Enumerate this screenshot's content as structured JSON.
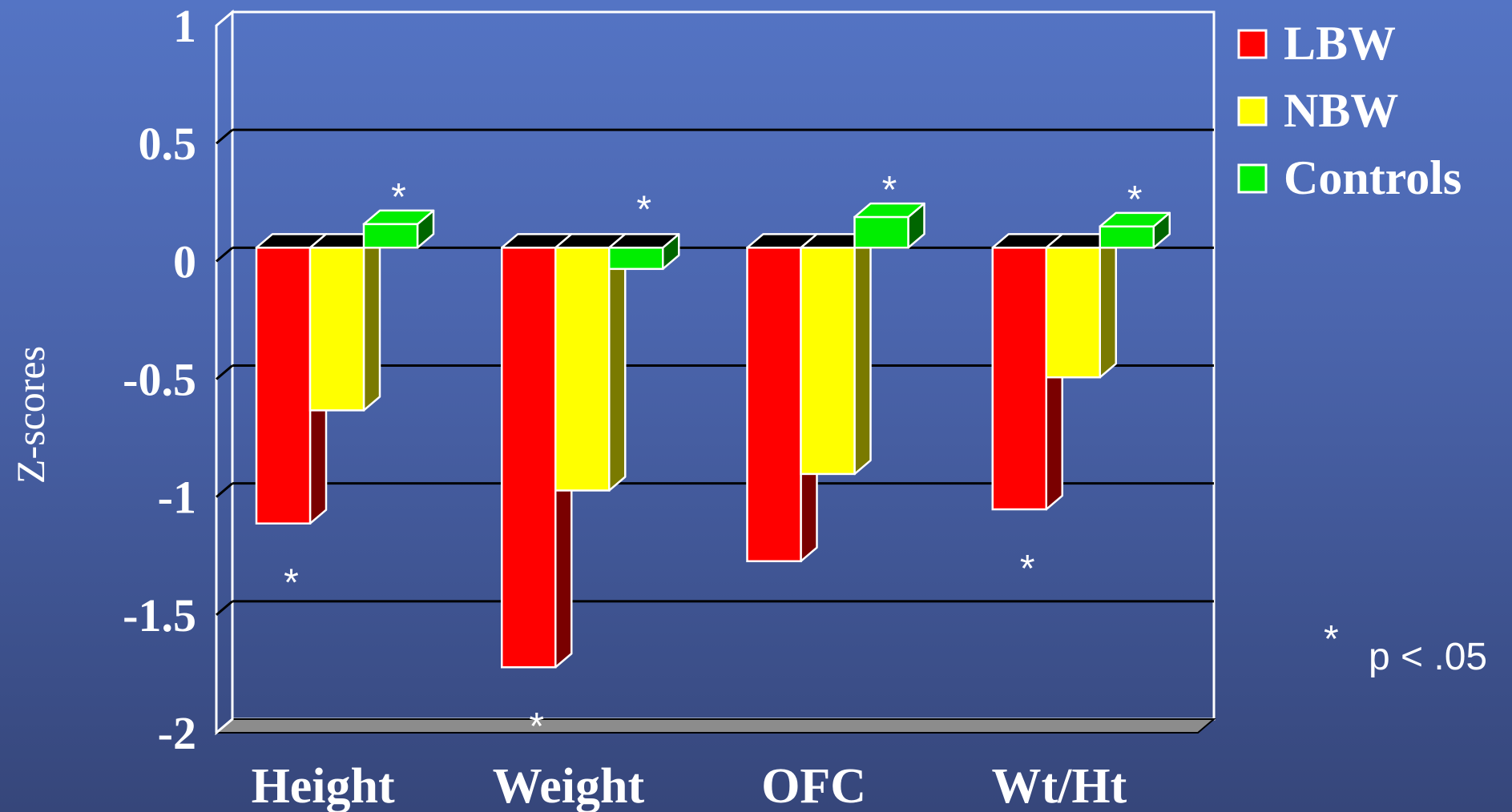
{
  "chart_data": {
    "type": "bar",
    "ylabel": "Z-scores",
    "ylim": [
      -2,
      1
    ],
    "yticks": [
      "1",
      "0.5",
      "0",
      "-0.5",
      "-1",
      "-1.5",
      "-2"
    ],
    "categories": [
      "Height",
      "Weight",
      "OFC",
      "Wt/Ht"
    ],
    "series": [
      {
        "name": "LBW",
        "color": "#ff0000",
        "side_color": "#7a0000",
        "values": [
          -1.17,
          -1.78,
          -1.33,
          -1.11
        ]
      },
      {
        "name": "NBW",
        "color": "#ffff00",
        "side_color": "#7a7a00",
        "values": [
          -0.69,
          -1.03,
          -0.96,
          -0.55
        ]
      },
      {
        "name": "Controls",
        "color": "#00ee00",
        "side_color": "#006600",
        "values": [
          0.1,
          -0.09,
          0.13,
          0.09
        ]
      }
    ],
    "significance": [
      {
        "category": "Height",
        "series": "LBW",
        "label": "*"
      },
      {
        "category": "Height",
        "series": "Controls",
        "label": "*"
      },
      {
        "category": "Weight",
        "series": "LBW",
        "label": "*"
      },
      {
        "category": "Weight",
        "series": "Controls",
        "label": "*"
      },
      {
        "category": "OFC",
        "series": "Controls",
        "label": "*"
      },
      {
        "category": "Wt/Ht",
        "series": "LBW",
        "label": "*"
      },
      {
        "category": "Wt/Ht",
        "series": "Controls",
        "label": "*"
      }
    ],
    "legend_position": "top-right",
    "grid": true,
    "note": {
      "star": "*",
      "text": "p < .05"
    }
  }
}
